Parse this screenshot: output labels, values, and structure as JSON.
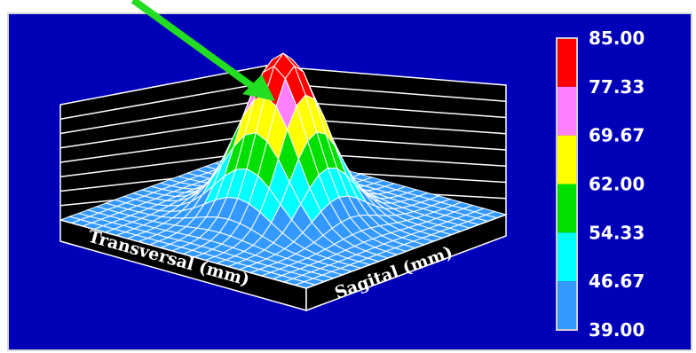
{
  "chart_data": {
    "type": "surface-3d",
    "title": "",
    "xlabel": "Transversal (mm)",
    "ylabel": "Sagital (mm)",
    "zlim": [
      39.0,
      85.0
    ],
    "peak_value": 85.0,
    "colorbar": {
      "ticks": [
        "85.00",
        "77.33",
        "69.67",
        "62.00",
        "54.33",
        "46.67",
        "39.00"
      ],
      "bands": [
        {
          "from": 77.33,
          "to": 85.0,
          "color": "#ff0000"
        },
        {
          "from": 69.67,
          "to": 77.33,
          "color": "#ff80ff"
        },
        {
          "from": 62.0,
          "to": 69.67,
          "color": "#ffff00"
        },
        {
          "from": 54.33,
          "to": 62.0,
          "color": "#00e000"
        },
        {
          "from": 46.67,
          "to": 54.33,
          "color": "#00ffff"
        },
        {
          "from": 39.0,
          "to": 46.67,
          "color": "#3399ff"
        }
      ]
    },
    "annotation": {
      "type": "arrow",
      "color": "#22dd22",
      "points_to": "peak"
    }
  }
}
